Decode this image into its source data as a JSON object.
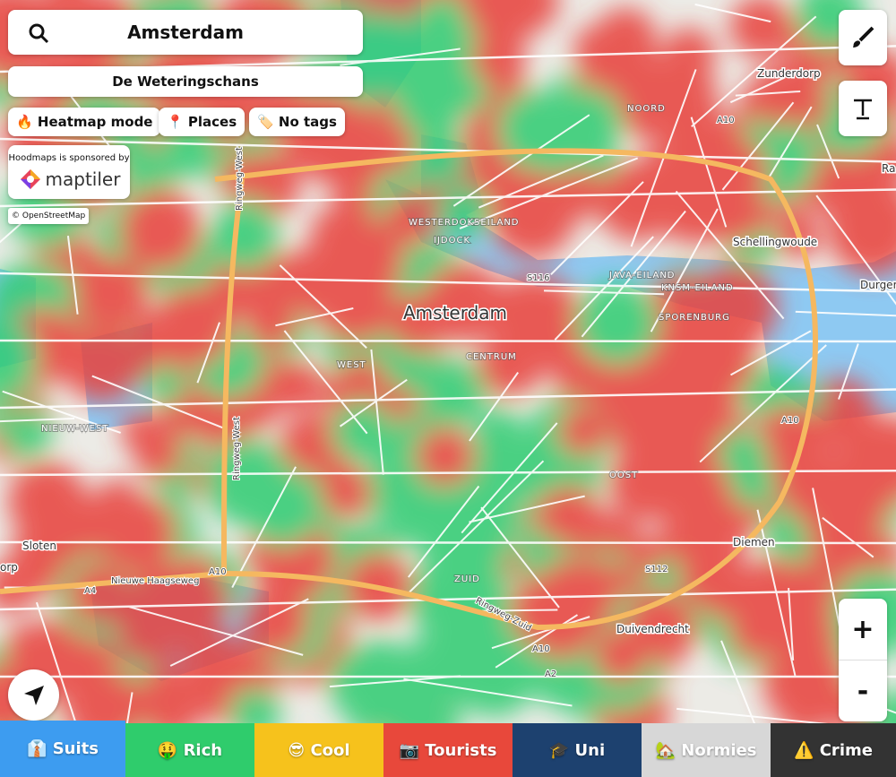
{
  "search": {
    "query": "Amsterdam"
  },
  "subtitle": "De Weteringschans",
  "toolbar": [
    "🔥 Heatmap mode",
    "📍 Places",
    "🏷️ No tags"
  ],
  "sponsor": {
    "text": "Hoodmaps is sponsored by",
    "brand": "maptiler"
  },
  "attribution": "© OpenStreetMap",
  "map_labels": [
    "Zunderdorp",
    "NOORD",
    "A10",
    "Ra",
    "WESTERDOKSEILAND",
    "IJDOCK",
    "S116",
    "JAVA-EILAND",
    "KNSM-EILAND",
    "Schellingwoude",
    "Durger",
    "SPORENBURG",
    "Amsterdam",
    "CENTRUM",
    "WEST",
    "NIEUW-WEST",
    "Ringweg-West",
    "Ringweg-West",
    "OOST",
    "A10",
    "Diemen",
    "S112",
    "Sloten",
    "orp",
    "A10",
    "A4",
    "Nieuwe Haagseweg",
    "ZUID",
    "Ringweg-Zuid",
    "Duivendrecht",
    "A10",
    "A2"
  ],
  "zoom": {
    "in": "+",
    "out": "-"
  },
  "tabs": [
    "👔 Suits",
    "🤑 Rich",
    "😎 Cool",
    "📷 Tourists",
    "🎓 Uni",
    "🏡 Normies",
    "⚠️ Crime"
  ]
}
